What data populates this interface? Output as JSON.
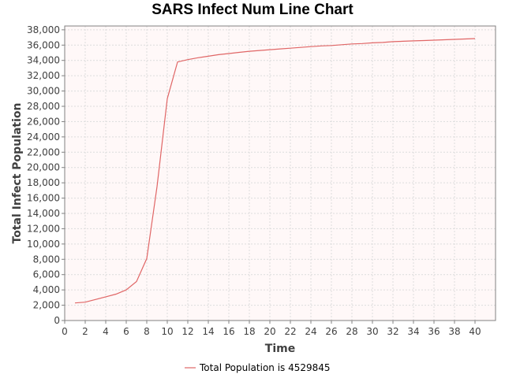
{
  "chart_data": {
    "type": "line",
    "title": "SARS Infect Num Line Chart",
    "xlabel": "Time",
    "ylabel": "Total Infect Population",
    "xlim": [
      0,
      42
    ],
    "ylim": [
      0,
      38500
    ],
    "x_ticks": [
      0,
      2,
      4,
      6,
      8,
      10,
      12,
      14,
      16,
      18,
      20,
      22,
      24,
      26,
      28,
      30,
      32,
      34,
      36,
      38,
      40
    ],
    "y_ticks": [
      0,
      2000,
      4000,
      6000,
      8000,
      10000,
      12000,
      14000,
      16000,
      18000,
      20000,
      22000,
      24000,
      26000,
      28000,
      30000,
      32000,
      34000,
      36000,
      38000
    ],
    "grid": true,
    "legend_position": "bottom",
    "colors": {
      "series": "#e06666",
      "plot_bg": "#fff8f8",
      "grid": "#dcdcdc"
    },
    "series": [
      {
        "name": "Total Population is 4529845",
        "x": [
          1,
          2,
          3,
          4,
          5,
          6,
          7,
          8,
          9,
          10,
          11,
          12,
          13,
          14,
          15,
          16,
          17,
          18,
          19,
          20,
          21,
          22,
          23,
          24,
          25,
          26,
          27,
          28,
          29,
          30,
          31,
          32,
          33,
          34,
          35,
          36,
          37,
          38,
          39,
          40
        ],
        "values": [
          2300,
          2400,
          2750,
          3100,
          3450,
          4000,
          5100,
          8100,
          17500,
          29000,
          33800,
          34100,
          34350,
          34550,
          34750,
          34900,
          35050,
          35200,
          35300,
          35400,
          35500,
          35600,
          35700,
          35800,
          35900,
          35950,
          36050,
          36150,
          36200,
          36300,
          36350,
          36450,
          36500,
          36550,
          36600,
          36650,
          36700,
          36750,
          36800,
          36850
        ]
      }
    ]
  }
}
